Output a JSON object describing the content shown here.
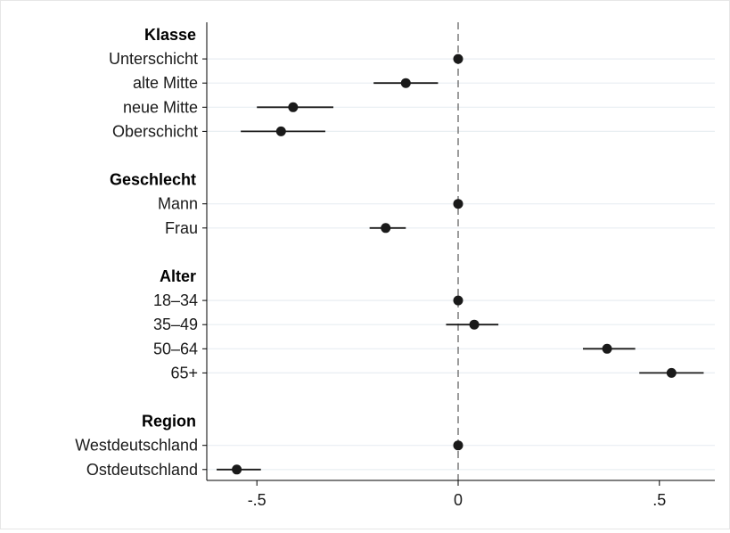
{
  "chart_data": {
    "type": "scatter",
    "subtype": "coefficient-plot",
    "xlim": [
      -0.62,
      0.64
    ],
    "xticks": [
      -0.5,
      0,
      0.5
    ],
    "xtick_labels": [
      "-.5",
      "0",
      ".5"
    ],
    "reference_line_x": 0,
    "grid": true,
    "rows": [
      {
        "kind": "header",
        "label": "Klasse"
      },
      {
        "kind": "item",
        "label": "Unterschicht",
        "estimate": 0.0,
        "ci": null
      },
      {
        "kind": "item",
        "label": "alte Mitte",
        "estimate": -0.13,
        "ci": [
          -0.21,
          -0.05
        ]
      },
      {
        "kind": "item",
        "label": "neue Mitte",
        "estimate": -0.41,
        "ci": [
          -0.5,
          -0.31
        ]
      },
      {
        "kind": "item",
        "label": "Oberschicht",
        "estimate": -0.44,
        "ci": [
          -0.54,
          -0.33
        ]
      },
      {
        "kind": "blank"
      },
      {
        "kind": "header",
        "label": "Geschlecht"
      },
      {
        "kind": "item",
        "label": "Mann",
        "estimate": 0.0,
        "ci": null
      },
      {
        "kind": "item",
        "label": "Frau",
        "estimate": -0.18,
        "ci": [
          -0.22,
          -0.13
        ]
      },
      {
        "kind": "blank"
      },
      {
        "kind": "header",
        "label": "Alter"
      },
      {
        "kind": "item",
        "label": "18–34",
        "estimate": 0.0,
        "ci": null
      },
      {
        "kind": "item",
        "label": "35–49",
        "estimate": 0.04,
        "ci": [
          -0.03,
          0.1
        ]
      },
      {
        "kind": "item",
        "label": "50–64",
        "estimate": 0.37,
        "ci": [
          0.31,
          0.44
        ]
      },
      {
        "kind": "item",
        "label": "65+",
        "estimate": 0.53,
        "ci": [
          0.45,
          0.61
        ]
      },
      {
        "kind": "blank"
      },
      {
        "kind": "header",
        "label": "Region"
      },
      {
        "kind": "item",
        "label": "Westdeutschland",
        "estimate": 0.0,
        "ci": null
      },
      {
        "kind": "item",
        "label": "Ostdeutschland",
        "estimate": -0.55,
        "ci": [
          -0.6,
          -0.49
        ]
      }
    ],
    "colors": {
      "marker": "#1a1a1a",
      "ci": "#1a1a1a",
      "grid": "#e8eef2",
      "axis": "#000000",
      "refline": "#666666"
    }
  }
}
